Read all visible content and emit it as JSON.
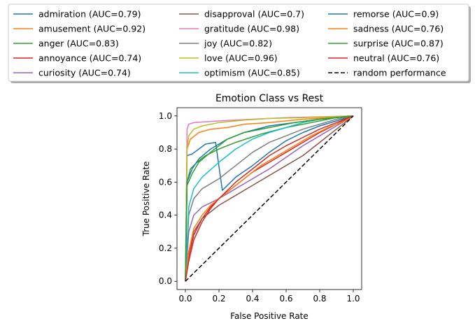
{
  "chart_data": {
    "type": "line",
    "title": "Emotion Class vs Rest",
    "xlabel": "False Positive Rate",
    "ylabel": "True Positive Rate",
    "xlim": [
      -0.05,
      1.05
    ],
    "ylim": [
      -0.05,
      1.05
    ],
    "xticks": [
      "0.0",
      "0.2",
      "0.4",
      "0.6",
      "0.8",
      "1.0"
    ],
    "yticks": [
      "0.0",
      "0.2",
      "0.4",
      "0.6",
      "0.8",
      "1.0"
    ],
    "grid": false,
    "legend_placement": "top-center, outside plot, 3 columns",
    "series": [
      {
        "name": "admiration (AUC=0.79)",
        "color": "#1f77b4",
        "dashed": false,
        "points": [
          [
            0,
            0
          ],
          [
            0.01,
            0.76
          ],
          [
            0.04,
            0.77
          ],
          [
            0.08,
            0.8
          ],
          [
            0.12,
            0.83
          ],
          [
            0.18,
            0.84
          ],
          [
            0.22,
            0.55
          ],
          [
            0.3,
            0.63
          ],
          [
            0.4,
            0.7
          ],
          [
            0.5,
            0.78
          ],
          [
            0.6,
            0.85
          ],
          [
            0.7,
            0.9
          ],
          [
            0.8,
            0.94
          ],
          [
            0.9,
            0.97
          ],
          [
            1,
            1
          ]
        ]
      },
      {
        "name": "amusement (AUC=0.92)",
        "color": "#ff7f0e",
        "dashed": false,
        "points": [
          [
            0,
            0
          ],
          [
            0.01,
            0.8
          ],
          [
            0.03,
            0.86
          ],
          [
            0.08,
            0.9
          ],
          [
            0.15,
            0.92
          ],
          [
            0.25,
            0.93
          ],
          [
            0.35,
            0.95
          ],
          [
            0.5,
            0.96
          ],
          [
            0.7,
            0.98
          ],
          [
            0.85,
            0.99
          ],
          [
            1,
            1
          ]
        ]
      },
      {
        "name": "anger (AUC=0.83)",
        "color": "#2ca02c",
        "dashed": false,
        "points": [
          [
            0,
            0
          ],
          [
            0.01,
            0.6
          ],
          [
            0.03,
            0.68
          ],
          [
            0.07,
            0.72
          ],
          [
            0.12,
            0.76
          ],
          [
            0.2,
            0.8
          ],
          [
            0.3,
            0.84
          ],
          [
            0.45,
            0.89
          ],
          [
            0.6,
            0.93
          ],
          [
            0.75,
            0.96
          ],
          [
            0.9,
            0.99
          ],
          [
            1,
            1
          ]
        ]
      },
      {
        "name": "annoyance (AUC=0.74)",
        "color": "#d62728",
        "dashed": false,
        "points": [
          [
            0,
            0
          ],
          [
            0.02,
            0.15
          ],
          [
            0.05,
            0.28
          ],
          [
            0.1,
            0.38
          ],
          [
            0.15,
            0.45
          ],
          [
            0.2,
            0.5
          ],
          [
            0.3,
            0.58
          ],
          [
            0.4,
            0.66
          ],
          [
            0.5,
            0.72
          ],
          [
            0.6,
            0.78
          ],
          [
            0.7,
            0.84
          ],
          [
            0.8,
            0.9
          ],
          [
            0.9,
            0.95
          ],
          [
            1,
            1
          ]
        ]
      },
      {
        "name": "curiosity (AUC=0.74)",
        "color": "#9467bd",
        "dashed": false,
        "points": [
          [
            0,
            0
          ],
          [
            0.02,
            0.3
          ],
          [
            0.05,
            0.4
          ],
          [
            0.1,
            0.45
          ],
          [
            0.2,
            0.5
          ],
          [
            0.3,
            0.56
          ],
          [
            0.4,
            0.62
          ],
          [
            0.5,
            0.68
          ],
          [
            0.6,
            0.75
          ],
          [
            0.7,
            0.82
          ],
          [
            0.8,
            0.88
          ],
          [
            0.9,
            0.94
          ],
          [
            1,
            1
          ]
        ]
      },
      {
        "name": "disapproval (AUC=0.7)",
        "color": "#8c564b",
        "dashed": false,
        "points": [
          [
            0,
            0
          ],
          [
            0.02,
            0.18
          ],
          [
            0.05,
            0.3
          ],
          [
            0.1,
            0.38
          ],
          [
            0.2,
            0.46
          ],
          [
            0.3,
            0.52
          ],
          [
            0.4,
            0.58
          ],
          [
            0.5,
            0.64
          ],
          [
            0.6,
            0.7
          ],
          [
            0.7,
            0.76
          ],
          [
            0.8,
            0.84
          ],
          [
            0.9,
            0.92
          ],
          [
            1,
            1
          ]
        ]
      },
      {
        "name": "gratitude (AUC=0.98)",
        "color": "#e377c2",
        "dashed": false,
        "points": [
          [
            0,
            0
          ],
          [
            0.01,
            0.92
          ],
          [
            0.02,
            0.95
          ],
          [
            0.05,
            0.96
          ],
          [
            0.2,
            0.97
          ],
          [
            0.4,
            0.98
          ],
          [
            0.6,
            0.99
          ],
          [
            0.8,
            0.995
          ],
          [
            1,
            1
          ]
        ]
      },
      {
        "name": "joy (AUC=0.82)",
        "color": "#7f7f7f",
        "dashed": false,
        "points": [
          [
            0,
            0
          ],
          [
            0.02,
            0.4
          ],
          [
            0.05,
            0.5
          ],
          [
            0.1,
            0.56
          ],
          [
            0.2,
            0.62
          ],
          [
            0.3,
            0.7
          ],
          [
            0.4,
            0.78
          ],
          [
            0.5,
            0.84
          ],
          [
            0.6,
            0.88
          ],
          [
            0.7,
            0.92
          ],
          [
            0.8,
            0.95
          ],
          [
            0.9,
            0.98
          ],
          [
            1,
            1
          ]
        ]
      },
      {
        "name": "love (AUC=0.96)",
        "color": "#bcbd22",
        "dashed": false,
        "points": [
          [
            0,
            0
          ],
          [
            0.01,
            0.8
          ],
          [
            0.02,
            0.88
          ],
          [
            0.05,
            0.92
          ],
          [
            0.1,
            0.94
          ],
          [
            0.2,
            0.96
          ],
          [
            0.35,
            0.975
          ],
          [
            0.5,
            0.985
          ],
          [
            0.7,
            0.99
          ],
          [
            0.85,
            0.995
          ],
          [
            1,
            1
          ]
        ]
      },
      {
        "name": "optimism (AUC=0.85)",
        "color": "#17becf",
        "dashed": false,
        "points": [
          [
            0,
            0
          ],
          [
            0.02,
            0.45
          ],
          [
            0.05,
            0.56
          ],
          [
            0.1,
            0.63
          ],
          [
            0.2,
            0.72
          ],
          [
            0.3,
            0.8
          ],
          [
            0.4,
            0.86
          ],
          [
            0.5,
            0.9
          ],
          [
            0.6,
            0.93
          ],
          [
            0.7,
            0.96
          ],
          [
            0.8,
            0.98
          ],
          [
            0.9,
            0.99
          ],
          [
            1,
            1
          ]
        ]
      },
      {
        "name": "remorse (AUC=0.9)",
        "color": "#1f77b4",
        "dashed": false,
        "points": [
          [
            0,
            0
          ],
          [
            0.01,
            0.6
          ],
          [
            0.04,
            0.68
          ],
          [
            0.08,
            0.74
          ],
          [
            0.15,
            0.8
          ],
          [
            0.25,
            0.86
          ],
          [
            0.35,
            0.9
          ],
          [
            0.5,
            0.94
          ],
          [
            0.65,
            0.96
          ],
          [
            0.8,
            0.98
          ],
          [
            1,
            1
          ]
        ]
      },
      {
        "name": "sadness (AUC=0.76)",
        "color": "#ff7f0e",
        "dashed": false,
        "points": [
          [
            0,
            0
          ],
          [
            0.02,
            0.18
          ],
          [
            0.05,
            0.32
          ],
          [
            0.1,
            0.4
          ],
          [
            0.15,
            0.46
          ],
          [
            0.25,
            0.54
          ],
          [
            0.35,
            0.62
          ],
          [
            0.45,
            0.7
          ],
          [
            0.55,
            0.76
          ],
          [
            0.65,
            0.82
          ],
          [
            0.75,
            0.88
          ],
          [
            0.85,
            0.93
          ],
          [
            0.95,
            0.97
          ],
          [
            1,
            1
          ]
        ]
      },
      {
        "name": "surprise (AUC=0.87)",
        "color": "#2ca02c",
        "dashed": false,
        "points": [
          [
            0,
            0
          ],
          [
            0.01,
            0.58
          ],
          [
            0.04,
            0.65
          ],
          [
            0.08,
            0.72
          ],
          [
            0.15,
            0.78
          ],
          [
            0.25,
            0.86
          ],
          [
            0.35,
            0.9
          ],
          [
            0.5,
            0.93
          ],
          [
            0.65,
            0.96
          ],
          [
            0.8,
            0.98
          ],
          [
            1,
            1
          ]
        ]
      },
      {
        "name": "neutral (AUC=0.76)",
        "color": "#d62728",
        "dashed": false,
        "points": [
          [
            0,
            0
          ],
          [
            0.02,
            0.12
          ],
          [
            0.05,
            0.25
          ],
          [
            0.1,
            0.36
          ],
          [
            0.15,
            0.44
          ],
          [
            0.2,
            0.5
          ],
          [
            0.3,
            0.6
          ],
          [
            0.4,
            0.68
          ],
          [
            0.5,
            0.76
          ],
          [
            0.6,
            0.82
          ],
          [
            0.7,
            0.87
          ],
          [
            0.8,
            0.92
          ],
          [
            0.9,
            0.96
          ],
          [
            1,
            1
          ]
        ]
      },
      {
        "name": "random performance",
        "color": "#000000",
        "dashed": true,
        "points": [
          [
            0,
            0
          ],
          [
            1,
            1
          ]
        ]
      }
    ]
  }
}
